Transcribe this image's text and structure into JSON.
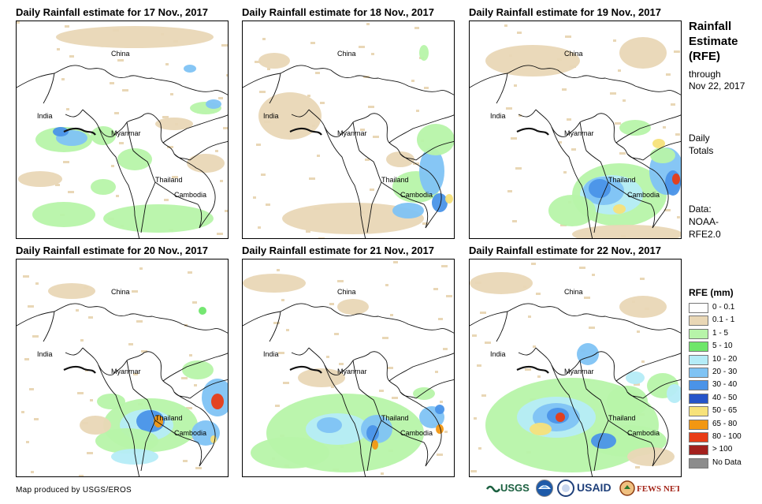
{
  "panels": [
    {
      "title": "Daily Rainfall estimate for 17 Nov., 2017",
      "labels": [
        "China",
        "India",
        "Myanmar",
        "Thailand",
        "Cambodia"
      ]
    },
    {
      "title": "Daily Rainfall estimate for 18 Nov., 2017",
      "labels": [
        "China",
        "India",
        "Myanmar",
        "Thailand",
        "Cambodia"
      ]
    },
    {
      "title": "Daily Rainfall estimate for 19 Nov., 2017",
      "labels": [
        "China",
        "India",
        "Myanmar",
        "Thailand",
        "Cambodia"
      ]
    },
    {
      "title": "Daily Rainfall estimate for 20 Nov., 2017",
      "labels": [
        "China",
        "India",
        "Myanmar",
        "Thailand",
        "Cambodia"
      ]
    },
    {
      "title": "Daily Rainfall estimate for 21 Nov., 2017",
      "labels": [
        "China",
        "India",
        "Myanmar",
        "Thailand",
        "Cambodia"
      ]
    },
    {
      "title": "Daily Rainfall estimate for 22 Nov., 2017",
      "labels": [
        "China",
        "India",
        "Myanmar",
        "Thailand",
        "Cambodia"
      ]
    }
  ],
  "side": {
    "title_lines": [
      "Rainfall",
      "Estimate",
      "(RFE)"
    ],
    "through_lines": [
      "through",
      "Nov 22, 2017"
    ],
    "daily_lines": [
      "Daily",
      "Totals"
    ],
    "data_lines": [
      "Data:",
      "NOAA-",
      "RFE2.0"
    ]
  },
  "legend": {
    "title": "RFE (mm)",
    "items": [
      {
        "label": "0 - 0.1",
        "color": "#ffffff"
      },
      {
        "label": "0.1 - 1",
        "color": "#e9d7b6"
      },
      {
        "label": "1 - 5",
        "color": "#b7f4a9"
      },
      {
        "label": "5 - 10",
        "color": "#6ee66a"
      },
      {
        "label": "10 - 20",
        "color": "#b5ecf7"
      },
      {
        "label": "20 - 30",
        "color": "#7fc3f4"
      },
      {
        "label": "30 - 40",
        "color": "#4a93e8"
      },
      {
        "label": "40 - 50",
        "color": "#2554c9"
      },
      {
        "label": "50 - 65",
        "color": "#f7e27a"
      },
      {
        "label": "65 - 80",
        "color": "#f29712"
      },
      {
        "label": "80 - 100",
        "color": "#e83c16"
      },
      {
        "label": "> 100",
        "color": "#a3201d"
      },
      {
        "label": "No Data",
        "color": "#8c8c8c"
      }
    ]
  },
  "credit": "Map produced by USGS/EROS",
  "logos": {
    "usgs": "USGS",
    "usaid": "USAID",
    "fewsnet": "FEWS NET"
  }
}
